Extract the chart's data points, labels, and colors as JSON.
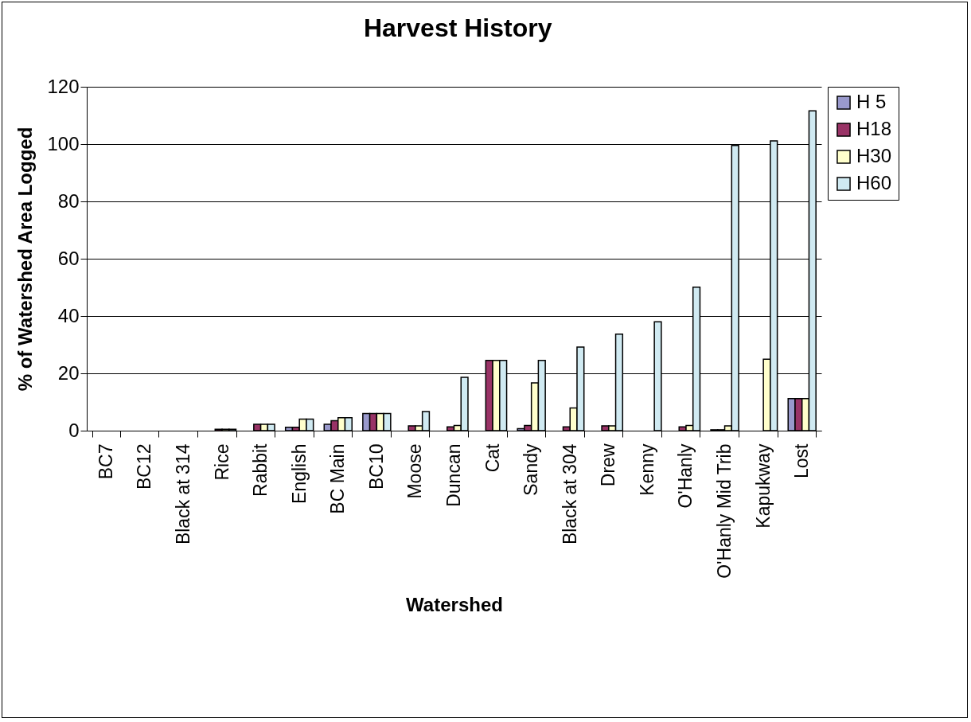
{
  "chart_data": {
    "type": "bar",
    "title": "Harvest History",
    "xlabel": "Watershed",
    "ylabel": "% of Watershed Area Logged",
    "categories": [
      "BC7",
      "BC12",
      "Black at 314",
      "Rice",
      "Rabbit",
      "English",
      "BC Main",
      "BC10",
      "Moose",
      "Duncan",
      "Cat",
      "Sandy",
      "Black at 304",
      "Drew",
      "Kenny",
      "O'Hanly",
      "O'Hanly Mid Trib",
      "Kapukway",
      "Lost"
    ],
    "series": [
      {
        "name": "H 5",
        "color": "#9999cc",
        "values": [
          0,
          0,
          0,
          0,
          0,
          1.2,
          2.2,
          6,
          0,
          0,
          0,
          0.7,
          0,
          0,
          0,
          0,
          0.3,
          0,
          11.2
        ]
      },
      {
        "name": "H18",
        "color": "#993366",
        "values": [
          0,
          0,
          0,
          0.5,
          2.2,
          1.2,
          3.5,
          6,
          1.7,
          1.3,
          24.5,
          1.8,
          1.3,
          1.7,
          0,
          1.3,
          0.3,
          0,
          11.2
        ]
      },
      {
        "name": "H30",
        "color": "#ffffcc",
        "values": [
          0,
          0,
          0,
          0.5,
          2.2,
          4,
          4.5,
          6,
          1.7,
          1.8,
          24.5,
          16.7,
          7.9,
          1.7,
          0,
          1.8,
          1.7,
          24.9,
          11.2
        ]
      },
      {
        "name": "H60",
        "color": "#d0eaf2",
        "values": [
          0,
          0,
          0,
          0.5,
          2.2,
          4,
          4.5,
          6,
          6.7,
          18.6,
          24.5,
          24.5,
          29.2,
          33.7,
          38,
          50.1,
          99.5,
          101.1,
          111.6
        ]
      }
    ],
    "ylim": [
      0,
      120
    ],
    "yticks": [
      0,
      20,
      40,
      60,
      80,
      100,
      120
    ],
    "grid": "y",
    "legend": "right"
  }
}
